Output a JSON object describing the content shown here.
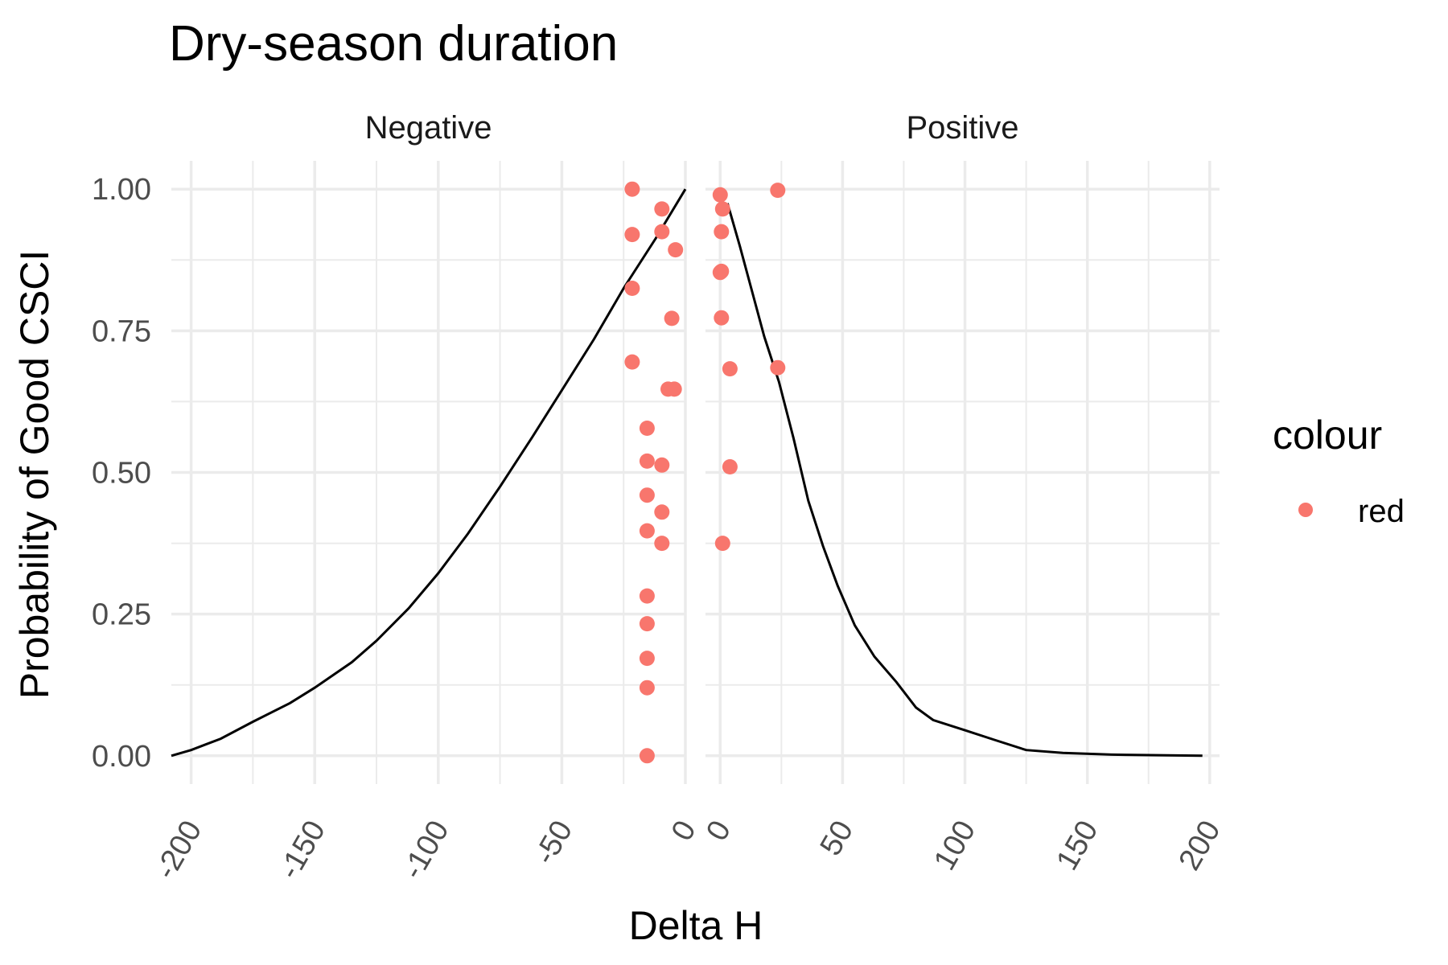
{
  "chart_data": {
    "type": "scatter",
    "title": "Dry-season duration",
    "xlabel": "Delta H",
    "ylabel": "Probability of Good CSCI",
    "y_ticks": [
      "0.00",
      "0.25",
      "0.50",
      "0.75",
      "1.00"
    ],
    "ylim": [
      -0.05,
      1.05
    ],
    "grid": true,
    "legend": {
      "title": "colour",
      "position": "right",
      "entries": [
        {
          "label": "red",
          "color": "#F8766D"
        }
      ]
    },
    "colors": {
      "points": "#F8766D",
      "curve": "#000000",
      "grid": "#EBEBEB"
    },
    "panels": [
      {
        "name": "Negative",
        "xlim": [
          -208,
          0
        ],
        "x_ticks": [
          "-200",
          "-150",
          "-100",
          "-50",
          "0"
        ],
        "x_tick_values": [
          -200,
          -150,
          -100,
          -50,
          0
        ],
        "curve": [
          [
            -208,
            0.0
          ],
          [
            -200,
            0.01
          ],
          [
            -188,
            0.03
          ],
          [
            -175,
            0.06
          ],
          [
            -160,
            0.093
          ],
          [
            -150,
            0.12
          ],
          [
            -135,
            0.165
          ],
          [
            -125,
            0.203
          ],
          [
            -112,
            0.26
          ],
          [
            -100,
            0.322
          ],
          [
            -88,
            0.392
          ],
          [
            -75,
            0.475
          ],
          [
            -62,
            0.562
          ],
          [
            -50,
            0.645
          ],
          [
            -37,
            0.735
          ],
          [
            -25,
            0.825
          ],
          [
            -12,
            0.913
          ],
          [
            0,
            1.0
          ]
        ],
        "points": [
          [
            -21.5,
            1.0
          ],
          [
            -9.5,
            0.965
          ],
          [
            -21.5,
            0.92
          ],
          [
            -9.5,
            0.925
          ],
          [
            -4,
            0.893
          ],
          [
            -21.5,
            0.825
          ],
          [
            -5.5,
            0.772
          ],
          [
            -21.5,
            0.695
          ],
          [
            -7,
            0.647
          ],
          [
            -4.5,
            0.647
          ],
          [
            -15.5,
            0.578
          ],
          [
            -15.5,
            0.52
          ],
          [
            -9.5,
            0.513
          ],
          [
            -15.5,
            0.46
          ],
          [
            -9.5,
            0.43
          ],
          [
            -15.5,
            0.397
          ],
          [
            -9.5,
            0.375
          ],
          [
            -15.5,
            0.282
          ],
          [
            -15.5,
            0.233
          ],
          [
            -15.5,
            0.172
          ],
          [
            -15.5,
            0.12
          ],
          [
            -15.5,
            0.0
          ]
        ]
      },
      {
        "name": "Positive",
        "xlim": [
          -6,
          204
        ],
        "x_ticks": [
          "0",
          "50",
          "100",
          "150",
          "200"
        ],
        "x_tick_values": [
          0,
          50,
          100,
          150,
          200
        ],
        "curve": [
          [
            3,
            0.975
          ],
          [
            8,
            0.9
          ],
          [
            13,
            0.82
          ],
          [
            18,
            0.74
          ],
          [
            24,
            0.66
          ],
          [
            30,
            0.56
          ],
          [
            36,
            0.45
          ],
          [
            42,
            0.37
          ],
          [
            48,
            0.3
          ],
          [
            55,
            0.23
          ],
          [
            63,
            0.175
          ],
          [
            72,
            0.13
          ],
          [
            80,
            0.085
          ],
          [
            87,
            0.063
          ],
          [
            100,
            0.045
          ],
          [
            112,
            0.028
          ],
          [
            125,
            0.01
          ],
          [
            140,
            0.005
          ],
          [
            160,
            0.002
          ],
          [
            197,
            0.0
          ]
        ],
        "points": [
          [
            0,
            0.99
          ],
          [
            23.5,
            0.998
          ],
          [
            1,
            0.965
          ],
          [
            0.5,
            0.925
          ],
          [
            0.5,
            0.855
          ],
          [
            0,
            0.853
          ],
          [
            0.5,
            0.773
          ],
          [
            4,
            0.683
          ],
          [
            23.5,
            0.685
          ],
          [
            4,
            0.51
          ],
          [
            1,
            0.375
          ]
        ]
      }
    ]
  }
}
